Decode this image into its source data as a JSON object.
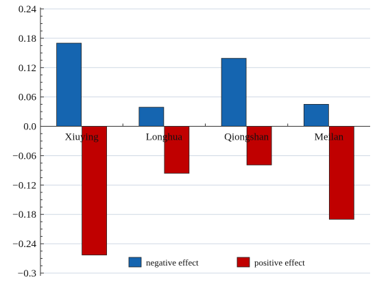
{
  "chart_data": {
    "type": "bar",
    "categories": [
      "Xiuying",
      "Longhua",
      "Qiongshan",
      "Meilan"
    ],
    "series": [
      {
        "name": "negative effect",
        "color": "#1565b0",
        "values": [
          0.17,
          0.039,
          0.139,
          0.045
        ]
      },
      {
        "name": "positive effect",
        "color": "#c00000",
        "values": [
          -0.263,
          -0.096,
          -0.079,
          -0.19
        ]
      }
    ],
    "ylim": [
      -0.3,
      0.24
    ],
    "yticks": [
      "0.24",
      "0.18",
      "0.12",
      "0.06",
      "0.0",
      "−0.06",
      "−0.12",
      "−0.18",
      "−0.24",
      "−0.3"
    ],
    "ytick_values": [
      0.24,
      0.18,
      0.12,
      0.06,
      0.0,
      -0.06,
      -0.12,
      -0.18,
      -0.24,
      -0.3
    ],
    "grid": "horizontal",
    "legend": "bottom-right",
    "title": "",
    "xlabel": "",
    "ylabel": ""
  }
}
